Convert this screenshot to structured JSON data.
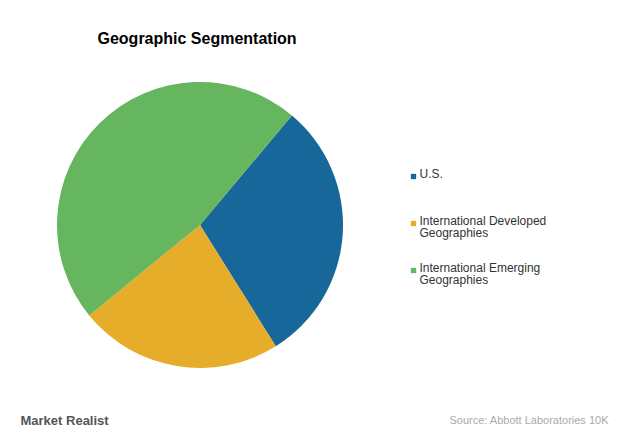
{
  "chart_data": {
    "type": "pie",
    "title": "Geographic Segmentation",
    "categories": [
      "U.S.",
      "International Developed Geographies",
      "International Emerging Geographies"
    ],
    "values": [
      30,
      23,
      47
    ],
    "colors": [
      "#17679a",
      "#e5ad2a",
      "#66b55f"
    ],
    "legend": "right",
    "source": "Source: Abbott Laboratories 10K",
    "logo": "Market Realist"
  }
}
